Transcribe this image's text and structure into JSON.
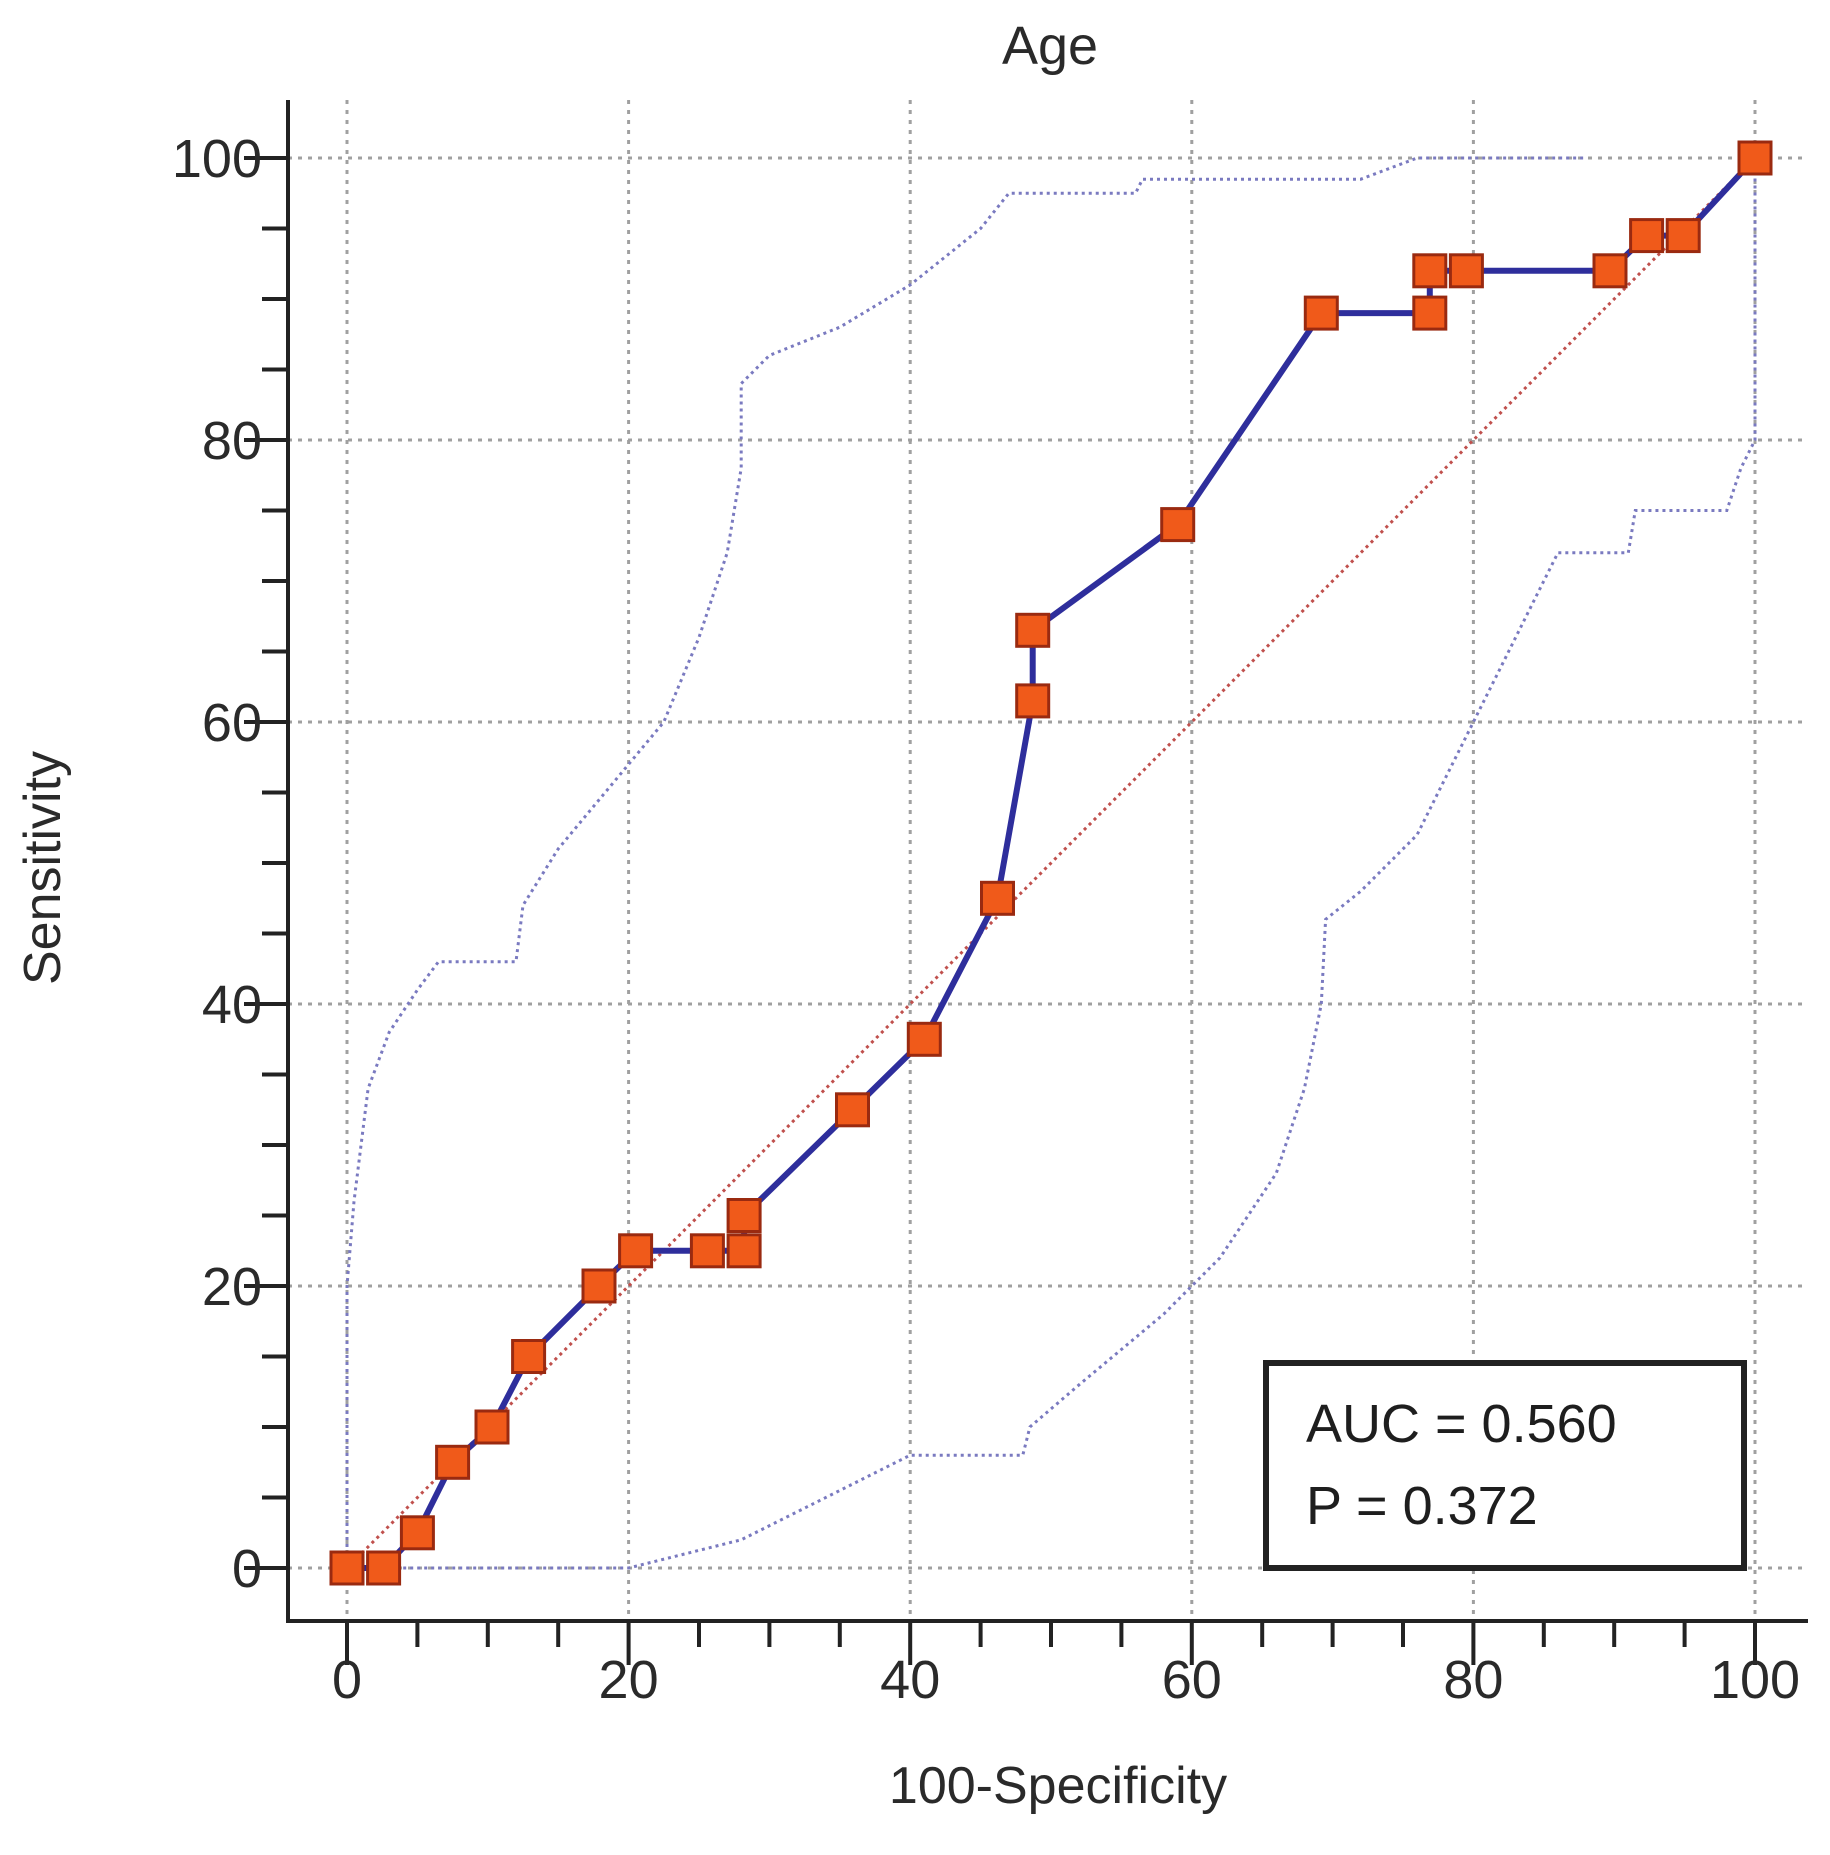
{
  "chart_data": {
    "type": "line",
    "title": "Age",
    "xlabel": "100-Specificity",
    "ylabel": "Sensitivity",
    "xlim": [
      0,
      100
    ],
    "ylim": [
      0,
      100
    ],
    "xticks": [
      0,
      20,
      40,
      60,
      80,
      100
    ],
    "yticks": [
      0,
      20,
      40,
      60,
      80,
      100
    ],
    "tick_labels_x": [
      "0",
      "20",
      "40",
      "60",
      "80",
      "100"
    ],
    "tick_labels_y": [
      "0",
      "20",
      "40",
      "60",
      "80",
      "100"
    ],
    "grid": true,
    "colors": {
      "roc": "#2e2e9c",
      "marker_fill": "#f05a1a",
      "marker_stroke": "#9a2a10",
      "ci": "#7a7ac0",
      "diagonal": "#c0504d",
      "grid": "#a0a0a0",
      "axis": "#222222"
    },
    "series": [
      {
        "role": "roc",
        "x": [
          0,
          2.6,
          5,
          7.5,
          10.3,
          12.9,
          17.9,
          20.5,
          25.6,
          28.2,
          28.2,
          35.9,
          41,
          46.2,
          48.7,
          48.7,
          59,
          69.2,
          76.9,
          76.9,
          79.5,
          89.7,
          92.3,
          94.9,
          100
        ],
        "y": [
          0,
          0,
          2.5,
          7.5,
          10,
          15,
          20,
          22.5,
          22.5,
          22.5,
          25,
          32.5,
          37.5,
          47.5,
          61.5,
          66.5,
          74,
          89,
          89,
          92,
          92,
          92,
          94.5,
          94.5,
          100
        ]
      },
      {
        "role": "ci_upper",
        "x": [
          0,
          0,
          0.5,
          1.5,
          3,
          5,
          6.5,
          8,
          12,
          12.5,
          15,
          17.5,
          20,
          22.5,
          25,
          27,
          28,
          28,
          30,
          35,
          40,
          45,
          47,
          56,
          56.5,
          72,
          76,
          86,
          88
        ],
        "y": [
          0,
          20,
          26,
          34,
          38,
          41,
          43,
          43,
          43,
          47,
          51,
          54,
          57,
          60,
          66,
          72,
          78,
          84,
          86,
          88,
          91,
          95,
          97.5,
          97.5,
          98.5,
          98.5,
          100,
          100,
          100
        ]
      },
      {
        "role": "ci_lower",
        "x": [
          2.5,
          10,
          20,
          24,
          28,
          32,
          36,
          40,
          48,
          48.5,
          52,
          58,
          62,
          66,
          68,
          69.2,
          69.5,
          72,
          76,
          78,
          80,
          82,
          84,
          86,
          91,
          91.5,
          98,
          99,
          100,
          100
        ],
        "y": [
          0,
          0,
          0,
          1,
          2,
          4,
          6,
          8,
          8,
          10,
          13,
          18,
          22,
          28,
          34,
          40,
          46,
          48,
          52,
          56,
          60,
          64,
          68,
          72,
          72,
          75,
          75,
          78,
          80,
          100
        ]
      },
      {
        "role": "reference_diagonal",
        "x": [
          0,
          100
        ],
        "y": [
          0,
          100
        ]
      }
    ],
    "annotations": {
      "auc": "AUC = 0.560",
      "p": "P = 0.372"
    }
  }
}
